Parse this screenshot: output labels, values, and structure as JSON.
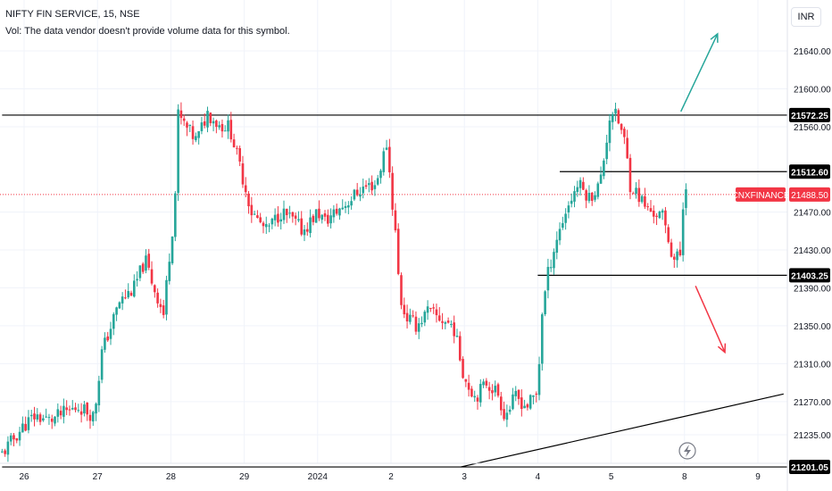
{
  "header": {
    "title": "NIFTY FIN SERVICE, 15, NSE",
    "volume_note": "Vol: The data vendor doesn't provide volume data for this symbol."
  },
  "currency": "INR",
  "chart_data": {
    "type": "candlestick",
    "symbol": "NIFTY FIN SERVICE",
    "interval": "15",
    "exchange": "NSE",
    "ylim": [
      21195,
      21680
    ],
    "y_ticks": [
      21640.0,
      21600.0,
      21560.0,
      21470.0,
      21430.0,
      21390.0,
      21350.0,
      21310.0,
      21270.0,
      21235.0
    ],
    "x_labels": [
      {
        "label": "26",
        "pos": 0.0
      },
      {
        "label": "27",
        "pos": 1.0
      },
      {
        "label": "28",
        "pos": 2.0
      },
      {
        "label": "29",
        "pos": 3.0
      },
      {
        "label": "2024",
        "pos": 4.0
      },
      {
        "label": "2",
        "pos": 5.0
      },
      {
        "label": "3",
        "pos": 6.0
      },
      {
        "label": "4",
        "pos": 7.0
      },
      {
        "label": "5",
        "pos": 8.0
      },
      {
        "label": "8",
        "pos": 9.0
      },
      {
        "label": "9",
        "pos": 10.0
      }
    ],
    "last_price": {
      "label": "CNXFINANCE",
      "value": 21488.5,
      "color": "#f23645"
    },
    "horizontal_lines": [
      {
        "value": 21572.25,
        "label": "21572.25",
        "from": -0.3
      },
      {
        "value": 21512.6,
        "label": "21512.60",
        "from": 7.3
      },
      {
        "value": 21403.25,
        "label": "21403.25",
        "from": 7.0
      },
      {
        "value": 21201.05,
        "label": "21201.05",
        "from": -0.3
      }
    ],
    "trend_line": {
      "x1": 5.95,
      "y1": 21201.05,
      "x2": 10.35,
      "y2": 21278
    },
    "arrows": [
      {
        "x1": 8.95,
        "y1": 21576,
        "x2": 9.45,
        "y2": 21658,
        "color": "#26a69a"
      },
      {
        "x1": 9.15,
        "y1": 21392,
        "x2": 9.55,
        "y2": 21322,
        "color": "#f23645"
      }
    ],
    "colors": {
      "up": "#26a69a",
      "down": "#f23645"
    },
    "session_close_anchors": [
      [
        -0.3,
        21215
      ],
      [
        0.0,
        21245
      ],
      [
        0.15,
        21255
      ],
      [
        0.35,
        21250
      ],
      [
        0.55,
        21258
      ],
      [
        0.75,
        21265
      ],
      [
        0.95,
        21255
      ],
      [
        1.0,
        21282
      ],
      [
        1.05,
        21320
      ],
      [
        1.3,
        21375
      ],
      [
        1.5,
        21390
      ],
      [
        1.65,
        21420
      ],
      [
        1.75,
        21395
      ],
      [
        1.9,
        21362
      ],
      [
        2.0,
        21440
      ],
      [
        2.05,
        21470
      ],
      [
        2.1,
        21572
      ],
      [
        2.2,
        21560
      ],
      [
        2.35,
        21545
      ],
      [
        2.5,
        21575
      ],
      [
        2.65,
        21562
      ],
      [
        2.8,
        21560
      ],
      [
        3.0,
        21500
      ],
      [
        3.1,
        21470
      ],
      [
        3.3,
        21450
      ],
      [
        3.5,
        21470
      ],
      [
        3.65,
        21462
      ],
      [
        3.8,
        21450
      ],
      [
        4.0,
        21470
      ],
      [
        4.1,
        21460
      ],
      [
        4.25,
        21470
      ],
      [
        4.4,
        21480
      ],
      [
        4.6,
        21495
      ],
      [
        4.8,
        21500
      ],
      [
        4.95,
        21545
      ],
      [
        5.0,
        21490
      ],
      [
        5.05,
        21460
      ],
      [
        5.12,
        21380
      ],
      [
        5.2,
        21360
      ],
      [
        5.35,
        21350
      ],
      [
        5.5,
        21365
      ],
      [
        5.65,
        21358
      ],
      [
        5.85,
        21350
      ],
      [
        6.0,
        21295
      ],
      [
        6.15,
        21275
      ],
      [
        6.3,
        21290
      ],
      [
        6.45,
        21280
      ],
      [
        6.55,
        21255
      ],
      [
        6.7,
        21275
      ],
      [
        6.85,
        21265
      ],
      [
        7.0,
        21280
      ],
      [
        7.05,
        21360
      ],
      [
        7.15,
        21410
      ],
      [
        7.25,
        21440
      ],
      [
        7.4,
        21475
      ],
      [
        7.55,
        21500
      ],
      [
        7.7,
        21485
      ],
      [
        7.85,
        21500
      ],
      [
        8.0,
        21580
      ],
      [
        8.1,
        21565
      ],
      [
        8.2,
        21540
      ],
      [
        8.25,
        21500
      ],
      [
        8.35,
        21490
      ],
      [
        8.5,
        21472
      ],
      [
        8.7,
        21465
      ],
      [
        8.85,
        21420
      ],
      [
        8.95,
        21425
      ],
      [
        9.0,
        21510
      ],
      [
        9.05,
        21488.5
      ]
    ]
  },
  "footer": {
    "lightning_icon": "lightning-icon"
  }
}
